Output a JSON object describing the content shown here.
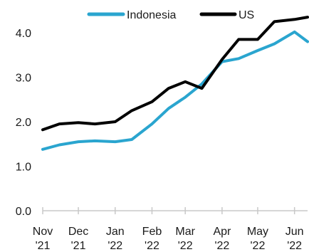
{
  "chart_data": {
    "type": "line",
    "title": "",
    "xlabel": "",
    "ylabel": "",
    "ylim": [
      0,
      4.4
    ],
    "yticks": [
      "0.0",
      "1.0",
      "2.0",
      "3.0",
      "4.0"
    ],
    "xticks": [
      {
        "month": "Nov",
        "year": "'21"
      },
      {
        "month": "Dec",
        "year": "'21"
      },
      {
        "month": "Jan",
        "year": "'22"
      },
      {
        "month": "Feb",
        "year": "'22"
      },
      {
        "month": "Mar",
        "year": "'22"
      },
      {
        "month": "Apr",
        "year": "'22"
      },
      {
        "month": "May",
        "year": "'22"
      },
      {
        "month": "Jun",
        "year": "'22"
      }
    ],
    "x_dates": [
      "2021-11-01",
      "2021-11-15",
      "2021-12-01",
      "2021-12-15",
      "2022-01-01",
      "2022-01-15",
      "2022-02-01",
      "2022-02-15",
      "2022-03-01",
      "2022-03-15",
      "2022-04-01",
      "2022-04-15",
      "2022-05-01",
      "2022-05-15",
      "2022-06-01",
      "2022-06-12"
    ],
    "grid": false,
    "legend_position": "top",
    "series": [
      {
        "name": "Indonesia",
        "color": "#2aa5cf",
        "values": [
          1.38,
          1.48,
          1.55,
          1.57,
          1.55,
          1.6,
          1.95,
          2.3,
          2.55,
          2.85,
          3.35,
          3.42,
          3.6,
          3.75,
          4.02,
          3.8
        ]
      },
      {
        "name": "US",
        "color": "#000000",
        "values": [
          1.82,
          1.95,
          1.98,
          1.95,
          2.0,
          2.25,
          2.45,
          2.75,
          2.9,
          2.75,
          3.4,
          3.85,
          3.85,
          4.25,
          4.3,
          4.35
        ]
      }
    ]
  }
}
